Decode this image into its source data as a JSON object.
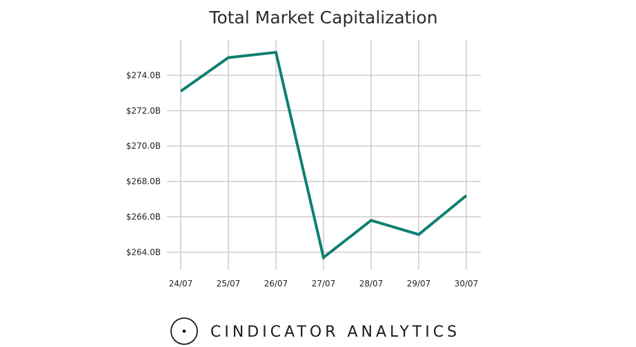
{
  "chart_data": {
    "type": "line",
    "title": "Total Market Capitalization",
    "xlabel": "",
    "ylabel": "",
    "categories": [
      "24/07",
      "25/07",
      "26/07",
      "27/07",
      "28/07",
      "29/07",
      "30/07"
    ],
    "series": [
      {
        "values": [
          273.1,
          275.0,
          275.3,
          263.7,
          265.8,
          265.0,
          267.2
        ],
        "color": "#0e8070"
      }
    ],
    "y_ticks": [
      {
        "value": 264,
        "label": "$264.0B"
      },
      {
        "value": 266,
        "label": "$266.0B"
      },
      {
        "value": 268,
        "label": "$268.0B"
      },
      {
        "value": 270,
        "label": "$270.0B"
      },
      {
        "value": 272,
        "label": "$272.0B"
      },
      {
        "value": 274,
        "label": "$274.0B"
      }
    ],
    "ylim": [
      263.0,
      276.0
    ],
    "grid": true,
    "grid_color": "#cccccc"
  },
  "footer": {
    "brand": "CINDICATOR ANALYTICS"
  }
}
